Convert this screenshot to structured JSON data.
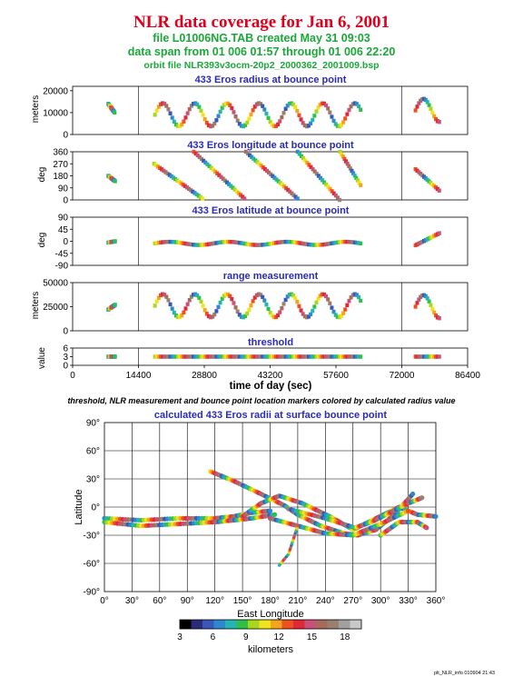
{
  "header": {
    "title": "NLR data coverage for Jan 6, 2001",
    "line1": "file L01006NG.TAB created May 31 09:03",
    "line2": "data span from 01 006 01:57 through 01 006 22:20",
    "line3": "orbit file NLR393v3ocm-20p2_2000362_2001009.bsp"
  },
  "caption": "threshold, NLR measurement and bounce point location markers colored by calculated radius value",
  "footer": "plt_NLR_info 010904 21:43",
  "colors": {
    "title": "#e0001c",
    "subtitle": "#1aa838",
    "panel_title": "#2a2ab8",
    "colorscale": [
      "#000000",
      "#2b2b7a",
      "#3a56b8",
      "#2e88d0",
      "#25b5b0",
      "#2ec04a",
      "#a8d81e",
      "#f2e41c",
      "#f5a51c",
      "#ef5020",
      "#e02838",
      "#c8507a",
      "#a86a5a",
      "#9a8070",
      "#a0a0a0",
      "#c8c8c8"
    ]
  },
  "chart_data": [
    {
      "type": "scatter",
      "title": "433 Eros radius at bounce point",
      "ylabel": "meters",
      "yticks": [
        "0",
        "10000",
        "20000"
      ],
      "ylim": [
        0,
        22000
      ],
      "xlim": [
        0,
        86400
      ],
      "xticks_shared": [
        "0",
        "14400",
        "28800",
        "43200",
        "57600",
        "72000",
        "86400"
      ],
      "xlabel": "time of day (sec)",
      "segments": [
        {
          "x": [
            7800,
            9200
          ],
          "y": [
            14000,
            10000
          ],
          "kind": "short"
        },
        {
          "x": [
            18000,
            63000
          ],
          "y": [
            9000,
            9000
          ],
          "kind": "wave"
        },
        {
          "x": [
            75000,
            80200
          ],
          "y": [
            11000,
            11000
          ],
          "kind": "wave"
        }
      ]
    },
    {
      "type": "scatter",
      "title": "433 Eros longitude at bounce point",
      "ylabel": "deg",
      "yticks": [
        "0",
        "90",
        "180",
        "270",
        "360"
      ],
      "ylim": [
        0,
        360
      ],
      "segments": [
        {
          "x": [
            7800,
            9300
          ],
          "y": [
            180,
            140
          ],
          "kind": "short"
        },
        {
          "x": [
            17800,
            28400
          ],
          "y": [
            270,
            10
          ],
          "kind": "line"
        },
        {
          "x": [
            26500,
            37600
          ],
          "y": [
            360,
            10
          ],
          "kind": "line"
        },
        {
          "x": [
            37900,
            49200
          ],
          "y": [
            360,
            10
          ],
          "kind": "line"
        },
        {
          "x": [
            49200,
            58400
          ],
          "y": [
            360,
            0
          ],
          "kind": "line"
        },
        {
          "x": [
            58500,
            63000
          ],
          "y": [
            360,
            110
          ],
          "kind": "line"
        },
        {
          "x": [
            75000,
            80200
          ],
          "y": [
            230,
            70
          ],
          "kind": "line"
        }
      ]
    },
    {
      "type": "scatter",
      "title": "433 Eros latitude at bounce point",
      "ylabel": "deg",
      "yticks": [
        "-90",
        "-45",
        "0",
        "45",
        "90"
      ],
      "ylim": [
        -90,
        90
      ],
      "segments": [
        {
          "x": [
            7800,
            9300
          ],
          "y": [
            -5,
            0
          ],
          "kind": "short"
        },
        {
          "x": [
            18000,
            63000
          ],
          "y": [
            -8,
            -8
          ],
          "kind": "flat"
        },
        {
          "x": [
            75000,
            80200
          ],
          "y": [
            -15,
            30
          ],
          "kind": "line"
        }
      ]
    },
    {
      "type": "scatter",
      "title": "range measurement",
      "ylabel": "meters",
      "yticks": [
        "0",
        "25000",
        "50000"
      ],
      "ylim": [
        0,
        50000
      ],
      "segments": [
        {
          "x": [
            7800,
            9300
          ],
          "y": [
            22000,
            27000
          ],
          "kind": "short"
        },
        {
          "x": [
            18000,
            63000
          ],
          "y": [
            26000,
            26000
          ],
          "kind": "wave"
        },
        {
          "x": [
            75000,
            80200
          ],
          "y": [
            25000,
            30000
          ],
          "kind": "wave"
        }
      ]
    },
    {
      "type": "scatter",
      "title": "threshold",
      "ylabel": "value",
      "yticks": [
        "0",
        "3",
        "6"
      ],
      "ylim": [
        0,
        6
      ],
      "segments": [
        {
          "x": [
            7800,
            9300
          ],
          "y": [
            3,
            3
          ],
          "kind": "flat"
        },
        {
          "x": [
            18000,
            63000
          ],
          "y": [
            3,
            3
          ],
          "kind": "flat"
        },
        {
          "x": [
            75000,
            80200
          ],
          "y": [
            3,
            3
          ],
          "kind": "flat"
        }
      ]
    },
    {
      "type": "scatter",
      "title": "calculated 433 Eros radii at surface bounce point",
      "xlabel": "East Longitude",
      "ylabel": "Latitude",
      "xlim": [
        0,
        360
      ],
      "ylim": [
        -90,
        90
      ],
      "xticks": [
        "0°",
        "30°",
        "60°",
        "90°",
        "120°",
        "150°",
        "180°",
        "210°",
        "240°",
        "270°",
        "300°",
        "330°",
        "360°"
      ],
      "yticks": [
        "-90°",
        "-60°",
        "-30°",
        "0°",
        "30°",
        "60°",
        "90°"
      ],
      "tracks": [
        {
          "lon": [
            0,
            40,
            80,
            120,
            140,
            160,
            180
          ],
          "lat": [
            -12,
            -14,
            -12,
            -12,
            -10,
            -6,
            -4
          ]
        },
        {
          "lon": [
            0,
            40,
            80,
            120,
            140,
            160,
            185
          ],
          "lat": [
            -16,
            -20,
            -18,
            -16,
            -14,
            -12,
            -8
          ]
        },
        {
          "lon": [
            115,
            140,
            170,
            195,
            210,
            235,
            260,
            275,
            295,
            315,
            335
          ],
          "lat": [
            38,
            28,
            14,
            2,
            -8,
            -20,
            -28,
            -30,
            -24,
            -8,
            14
          ]
        },
        {
          "lon": [
            150,
            170,
            190,
            215,
            245,
            270,
            295,
            320,
            340,
            360
          ],
          "lat": [
            -10,
            4,
            12,
            4,
            -10,
            -24,
            -12,
            0,
            -8,
            -10
          ]
        },
        {
          "lon": [
            180,
            210,
            240,
            270,
            300,
            330
          ],
          "lat": [
            -12,
            -20,
            -28,
            -30,
            -18,
            -4
          ]
        },
        {
          "lon": [
            200,
            240,
            272,
            290,
            310,
            330,
            345
          ],
          "lat": [
            -2,
            -12,
            -22,
            -16,
            -6,
            4,
            10
          ]
        },
        {
          "lon": [
            190,
            200,
            205,
            210
          ],
          "lat": [
            -62,
            -50,
            -35,
            -20
          ]
        },
        {
          "lon": [
            300,
            320,
            340,
            350
          ],
          "lat": [
            -30,
            -16,
            -16,
            -22
          ]
        }
      ]
    },
    {
      "type": "heatmap",
      "title": "colorbar",
      "xlabel": "kilometers",
      "xticks": [
        "3",
        "6",
        "9",
        "12",
        "15",
        "18"
      ],
      "range": [
        3,
        19.5
      ]
    }
  ]
}
